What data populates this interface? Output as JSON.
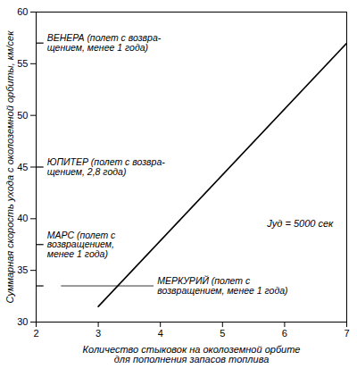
{
  "chart_data": {
    "type": "line",
    "x_label": "Количество стыковок на околоземной орбите\nдля пополнения запасов топлива",
    "y_label": "Суммарная скорость ухода с околоземной орбиты, км/сек",
    "x": [
      3,
      7
    ],
    "values": [
      31.5,
      57
    ],
    "color": "#000000",
    "xlim": [
      2,
      7
    ],
    "xticks": [
      2,
      3,
      4,
      5,
      6,
      7
    ],
    "ylim": [
      30,
      60
    ],
    "yticks": [
      30,
      35,
      40,
      45,
      50,
      55,
      60
    ],
    "grid": false,
    "levels": [
      {
        "text": "ВЕНЕРА (полет с возвра-\nщением, менее 1 года)",
        "y": 57
      },
      {
        "text": "ЮПИТЕР (полет с возвра-\nщением, 2,8 года)",
        "y": 45
      },
      {
        "text": "МАРС (полет с\nвозвращением,\nменее 1 года)",
        "y": 37.5
      },
      {
        "text": "МЕРКУРИЙ (полет с\nвозвращением, менее 1 года)",
        "y": 33.5,
        "x": 3.95
      }
    ],
    "annotations": [
      {
        "text": "Jуд = 5000 сек",
        "x": 6.25,
        "y": 39.5
      }
    ]
  }
}
